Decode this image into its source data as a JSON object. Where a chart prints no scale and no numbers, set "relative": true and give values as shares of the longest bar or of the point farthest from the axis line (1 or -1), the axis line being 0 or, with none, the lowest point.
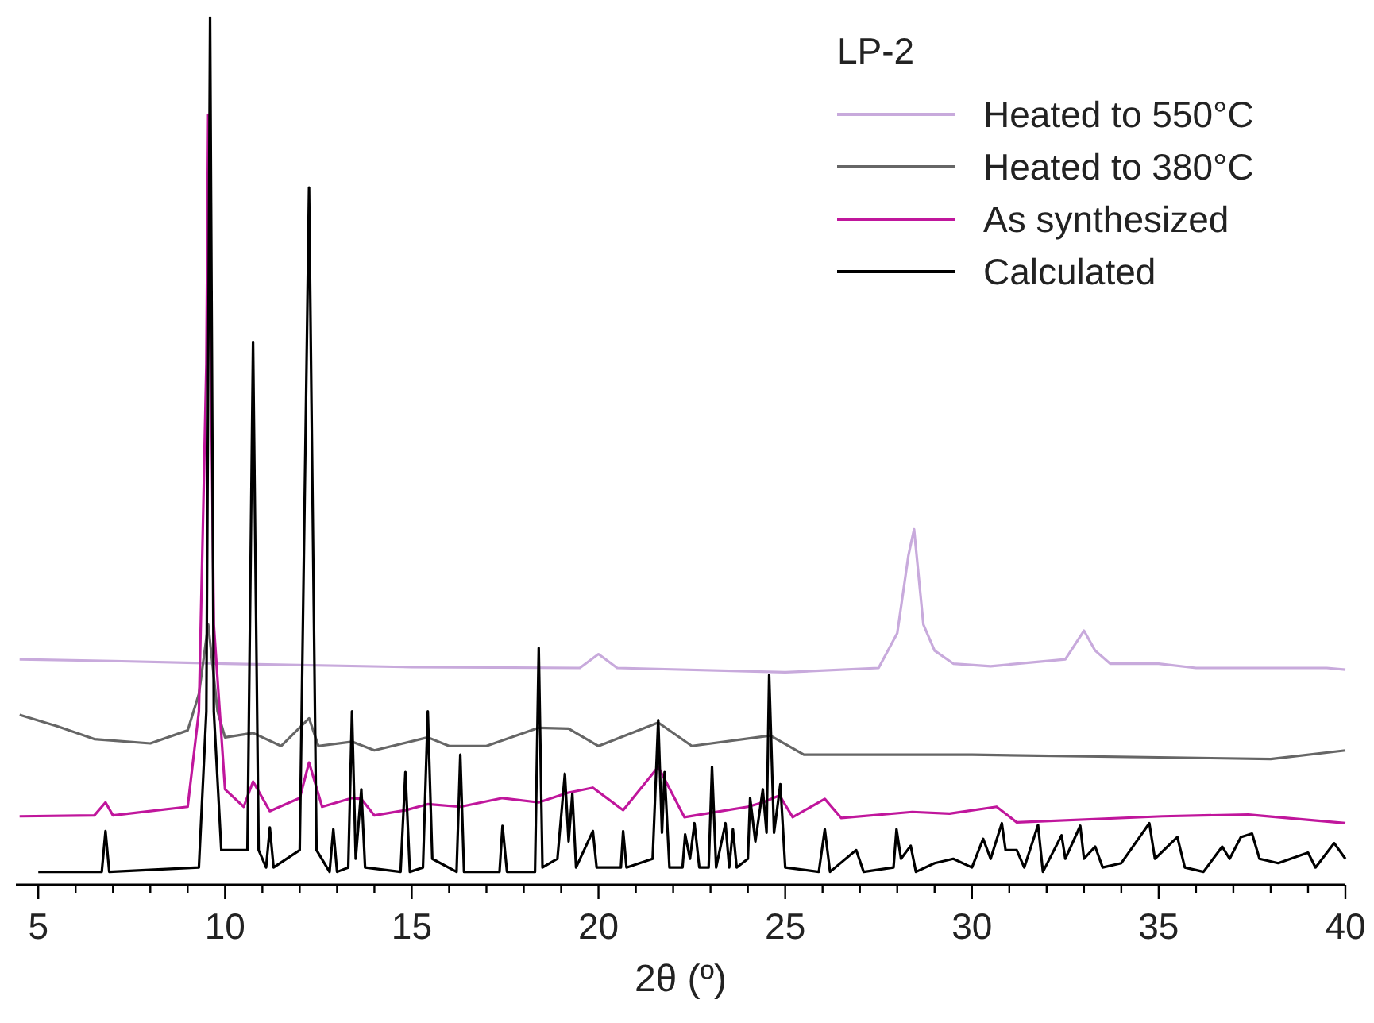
{
  "chart_data": {
    "type": "line",
    "relative": true,
    "xlabel": "2θ (º)",
    "legend_title": "LP-2",
    "legend": "top right",
    "grid": false,
    "tick_labels": "x",
    "marker": "none",
    "line_style": "solid",
    "xlim": [
      4.4,
      40
    ],
    "xticks": [
      5,
      {
        "value": 6,
        "label": null
      },
      {
        "value": 7,
        "label": null
      },
      {
        "value": 8,
        "label": null
      },
      {
        "value": 9,
        "label": null
      },
      10,
      {
        "value": 11,
        "label": null
      },
      {
        "value": 12,
        "label": null
      },
      {
        "value": 13,
        "label": null
      },
      {
        "value": 14,
        "label": null
      },
      15,
      {
        "value": 16,
        "label": null
      },
      {
        "value": 17,
        "label": null
      },
      {
        "value": 18,
        "label": null
      },
      {
        "value": 19,
        "label": null
      },
      20,
      {
        "value": 21,
        "label": null
      },
      {
        "value": 22,
        "label": null
      },
      {
        "value": 23,
        "label": null
      },
      {
        "value": 24,
        "label": null
      },
      25,
      {
        "value": 26,
        "label": null
      },
      {
        "value": 27,
        "label": null
      },
      {
        "value": 28,
        "label": null
      },
      {
        "value": 29,
        "label": null
      },
      30,
      {
        "value": 31,
        "label": null
      },
      {
        "value": 32,
        "label": null
      },
      {
        "value": 33,
        "label": null
      },
      {
        "value": 34,
        "label": null
      },
      35,
      {
        "value": 36,
        "label": null
      },
      {
        "value": 37,
        "label": null
      },
      {
        "value": 38,
        "label": null
      },
      {
        "value": 39,
        "label": null
      },
      40
    ],
    "series": [
      {
        "name": "Heated to 550°C",
        "color": "#c8aadc",
        "x": [
          4.5,
          7,
          10,
          15,
          19.5,
          20,
          20.5,
          25,
          27.5,
          28,
          28.3,
          28.45,
          28.7,
          29,
          29.5,
          30.5,
          32.5,
          33,
          33.3,
          33.7,
          35,
          36,
          38,
          39.5,
          40
        ],
        "values": [
          0.26,
          0.258,
          0.255,
          0.251,
          0.25,
          0.266,
          0.25,
          0.245,
          0.25,
          0.29,
          0.38,
          0.41,
          0.3,
          0.27,
          0.255,
          0.252,
          0.26,
          0.293,
          0.27,
          0.255,
          0.255,
          0.25,
          0.25,
          0.25,
          0.248
        ]
      },
      {
        "name": "Heated to 380°C",
        "color": "#666666",
        "x": [
          4.5,
          5.5,
          6.5,
          8,
          9,
          9.3,
          9.55,
          9.8,
          10,
          10.75,
          11.5,
          12.25,
          12.5,
          13.4,
          14,
          15.43,
          16,
          17,
          18.4,
          19.2,
          20,
          21.6,
          22.5,
          24.6,
          25.5,
          30,
          35,
          38,
          40
        ],
        "values": [
          0.196,
          0.183,
          0.168,
          0.163,
          0.178,
          0.22,
          0.3,
          0.2,
          0.17,
          0.175,
          0.16,
          0.192,
          0.16,
          0.165,
          0.155,
          0.17,
          0.16,
          0.16,
          0.181,
          0.18,
          0.16,
          0.187,
          0.16,
          0.172,
          0.15,
          0.15,
          0.147,
          0.145,
          0.155
        ]
      },
      {
        "name": "As synthesized",
        "color": "#c0169c",
        "x": [
          4.5,
          6.5,
          6.8,
          7,
          9,
          9.3,
          9.5,
          9.55,
          9.7,
          10,
          10.5,
          10.75,
          11.2,
          12,
          12.25,
          12.6,
          13.4,
          13.65,
          14,
          14.83,
          15.43,
          16.3,
          17.43,
          18.4,
          19.17,
          19.85,
          20.66,
          21.6,
          22.3,
          24,
          24.4,
          24.85,
          25.2,
          26.06,
          26.5,
          28.4,
          29.4,
          30.66,
          31.2,
          35.1,
          37.4,
          40
        ],
        "values": [
          0.079,
          0.08,
          0.095,
          0.08,
          0.09,
          0.2,
          0.6,
          0.888,
          0.3,
          0.11,
          0.09,
          0.119,
          0.085,
          0.1,
          0.141,
          0.09,
          0.1,
          0.099,
          0.08,
          0.086,
          0.093,
          0.09,
          0.1,
          0.095,
          0.106,
          0.112,
          0.086,
          0.136,
          0.078,
          0.09,
          0.095,
          0.103,
          0.078,
          0.099,
          0.077,
          0.084,
          0.082,
          0.09,
          0.072,
          0.079,
          0.081,
          0.071
        ]
      },
      {
        "name": "Calculated",
        "color": "#000000",
        "x": [
          5,
          6.7,
          6.8,
          6.9,
          9.3,
          9.5,
          9.6,
          9.7,
          9.9,
          10.6,
          10.75,
          10.9,
          11.1,
          11.2,
          11.3,
          12,
          12.25,
          12.45,
          12.8,
          12.9,
          13,
          13.3,
          13.4,
          13.5,
          13.65,
          13.75,
          14.7,
          14.83,
          14.95,
          15.3,
          15.43,
          15.55,
          16.2,
          16.3,
          16.4,
          17.35,
          17.43,
          17.55,
          18.3,
          18.4,
          18.5,
          18.9,
          19.1,
          19.2,
          19.3,
          19.4,
          19.85,
          19.95,
          20.6,
          20.66,
          20.75,
          21.45,
          21.6,
          21.7,
          21.77,
          21.9,
          22.25,
          22.32,
          22.45,
          22.57,
          22.7,
          22.95,
          23.04,
          23.15,
          23.4,
          23.5,
          23.6,
          23.7,
          24,
          24.06,
          24.2,
          24.4,
          24.5,
          24.57,
          24.7,
          24.87,
          25,
          25.9,
          26.06,
          26.2,
          26.9,
          27.1,
          27.9,
          27.98,
          28.1,
          28.36,
          28.5,
          29,
          29.5,
          30,
          30.3,
          30.5,
          30.8,
          30.9,
          31.2,
          31.4,
          31.77,
          31.9,
          32.4,
          32.5,
          32.9,
          33,
          33.3,
          33.5,
          34,
          34.75,
          34.9,
          35.5,
          35.7,
          36.2,
          36.7,
          36.9,
          37.2,
          37.5,
          37.7,
          38.2,
          39,
          39.2,
          39.7,
          40
        ],
        "values": [
          0.015,
          0.015,
          0.062,
          0.015,
          0.02,
          0.2,
          1.0,
          0.2,
          0.04,
          0.04,
          0.626,
          0.04,
          0.02,
          0.066,
          0.02,
          0.04,
          0.804,
          0.04,
          0.015,
          0.064,
          0.015,
          0.02,
          0.2,
          0.03,
          0.11,
          0.02,
          0.015,
          0.13,
          0.015,
          0.02,
          0.2,
          0.03,
          0.015,
          0.15,
          0.015,
          0.015,
          0.068,
          0.015,
          0.015,
          0.273,
          0.02,
          0.03,
          0.128,
          0.05,
          0.105,
          0.02,
          0.062,
          0.02,
          0.02,
          0.062,
          0.02,
          0.03,
          0.19,
          0.06,
          0.13,
          0.02,
          0.02,
          0.058,
          0.03,
          0.071,
          0.02,
          0.02,
          0.136,
          0.02,
          0.071,
          0.02,
          0.064,
          0.02,
          0.03,
          0.1,
          0.05,
          0.11,
          0.06,
          0.242,
          0.06,
          0.116,
          0.02,
          0.015,
          0.064,
          0.015,
          0.04,
          0.015,
          0.02,
          0.064,
          0.03,
          0.045,
          0.015,
          0.025,
          0.03,
          0.02,
          0.053,
          0.03,
          0.071,
          0.04,
          0.04,
          0.02,
          0.069,
          0.015,
          0.057,
          0.03,
          0.068,
          0.03,
          0.044,
          0.02,
          0.025,
          0.071,
          0.03,
          0.055,
          0.02,
          0.015,
          0.044,
          0.03,
          0.055,
          0.059,
          0.03,
          0.025,
          0.037,
          0.02,
          0.048,
          0.03
        ]
      }
    ]
  }
}
